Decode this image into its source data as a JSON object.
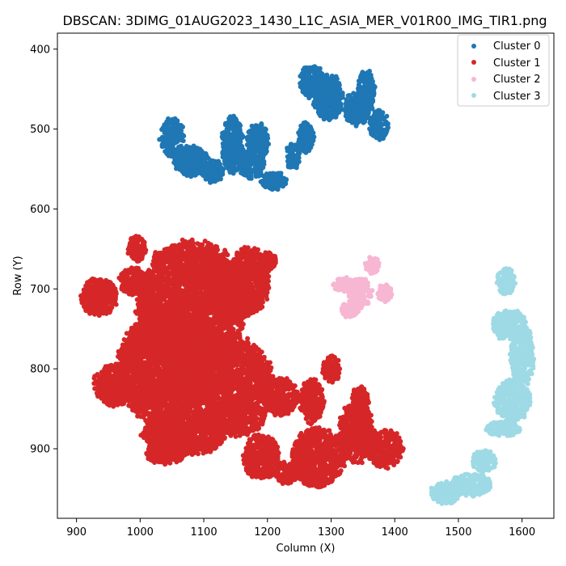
{
  "chart_data": {
    "type": "scatter",
    "title": "DBSCAN: 3DIMG_01AUG2023_1430_L1C_ASIA_MER_V01R00_IMG_TIR1.png",
    "xlabel": "Column (X)",
    "ylabel": "Row (Y)",
    "xlim": [
      870,
      1650
    ],
    "ylim": [
      380,
      987
    ],
    "y_inverted": true,
    "xticks": [
      900,
      1000,
      1100,
      1200,
      1300,
      1400,
      1500,
      1600
    ],
    "yticks": [
      400,
      500,
      600,
      700,
      800,
      900
    ],
    "grid": false,
    "legend_position": "top-right",
    "series": [
      {
        "name": "Cluster 0",
        "color": "#1f77b4",
        "blobs": [
          {
            "cx": 1050,
            "cy": 510,
            "rx": 20,
            "ry": 26
          },
          {
            "cx": 1080,
            "cy": 540,
            "rx": 30,
            "ry": 20
          },
          {
            "cx": 1115,
            "cy": 553,
            "rx": 18,
            "ry": 15
          },
          {
            "cx": 1145,
            "cy": 520,
            "rx": 18,
            "ry": 38
          },
          {
            "cx": 1175,
            "cy": 545,
            "rx": 22,
            "ry": 18
          },
          {
            "cx": 1185,
            "cy": 515,
            "rx": 18,
            "ry": 25
          },
          {
            "cx": 1210,
            "cy": 565,
            "rx": 22,
            "ry": 12
          },
          {
            "cx": 1240,
            "cy": 535,
            "rx": 12,
            "ry": 18
          },
          {
            "cx": 1260,
            "cy": 510,
            "rx": 14,
            "ry": 20
          },
          {
            "cx": 1295,
            "cy": 460,
            "rx": 25,
            "ry": 32
          },
          {
            "cx": 1270,
            "cy": 440,
            "rx": 20,
            "ry": 22
          },
          {
            "cx": 1340,
            "cy": 475,
            "rx": 22,
            "ry": 22
          },
          {
            "cx": 1355,
            "cy": 455,
            "rx": 15,
            "ry": 30
          },
          {
            "cx": 1375,
            "cy": 495,
            "rx": 16,
            "ry": 20
          }
        ]
      },
      {
        "name": "Cluster 1",
        "color": "#d62728",
        "blobs": [
          {
            "cx": 935,
            "cy": 710,
            "rx": 30,
            "ry": 25
          },
          {
            "cx": 990,
            "cy": 690,
            "rx": 25,
            "ry": 18
          },
          {
            "cx": 995,
            "cy": 650,
            "rx": 15,
            "ry": 18
          },
          {
            "cx": 1080,
            "cy": 720,
            "rx": 90,
            "ry": 85
          },
          {
            "cx": 1170,
            "cy": 690,
            "rx": 35,
            "ry": 45
          },
          {
            "cx": 1200,
            "cy": 665,
            "rx": 15,
            "ry": 12
          },
          {
            "cx": 960,
            "cy": 820,
            "rx": 35,
            "ry": 28
          },
          {
            "cx": 1030,
            "cy": 800,
            "rx": 70,
            "ry": 70
          },
          {
            "cx": 1130,
            "cy": 810,
            "rx": 80,
            "ry": 55
          },
          {
            "cx": 1150,
            "cy": 860,
            "rx": 50,
            "ry": 25
          },
          {
            "cx": 1070,
            "cy": 880,
            "rx": 70,
            "ry": 30
          },
          {
            "cx": 1040,
            "cy": 905,
            "rx": 35,
            "ry": 15
          },
          {
            "cx": 1220,
            "cy": 835,
            "rx": 30,
            "ry": 25
          },
          {
            "cx": 1190,
            "cy": 910,
            "rx": 30,
            "ry": 30
          },
          {
            "cx": 1270,
            "cy": 840,
            "rx": 20,
            "ry": 30
          },
          {
            "cx": 1300,
            "cy": 800,
            "rx": 15,
            "ry": 18
          },
          {
            "cx": 1280,
            "cy": 910,
            "rx": 45,
            "ry": 40
          },
          {
            "cx": 1340,
            "cy": 880,
            "rx": 30,
            "ry": 40
          },
          {
            "cx": 1345,
            "cy": 840,
            "rx": 15,
            "ry": 20
          },
          {
            "cx": 1385,
            "cy": 900,
            "rx": 30,
            "ry": 25
          },
          {
            "cx": 1230,
            "cy": 930,
            "rx": 20,
            "ry": 15
          }
        ]
      },
      {
        "name": "Cluster 2",
        "color": "#f7b6d2",
        "blobs": [
          {
            "cx": 1320,
            "cy": 695,
            "rx": 18,
            "ry": 10
          },
          {
            "cx": 1345,
            "cy": 705,
            "rx": 20,
            "ry": 20
          },
          {
            "cx": 1365,
            "cy": 670,
            "rx": 12,
            "ry": 12
          },
          {
            "cx": 1330,
            "cy": 725,
            "rx": 15,
            "ry": 12
          },
          {
            "cx": 1385,
            "cy": 705,
            "rx": 12,
            "ry": 12
          }
        ]
      },
      {
        "name": "Cluster 3",
        "color": "#9edae5",
        "blobs": [
          {
            "cx": 1575,
            "cy": 690,
            "rx": 15,
            "ry": 18
          },
          {
            "cx": 1580,
            "cy": 745,
            "rx": 30,
            "ry": 20
          },
          {
            "cx": 1600,
            "cy": 785,
            "rx": 20,
            "ry": 40
          },
          {
            "cx": 1585,
            "cy": 840,
            "rx": 30,
            "ry": 28
          },
          {
            "cx": 1570,
            "cy": 875,
            "rx": 30,
            "ry": 10
          },
          {
            "cx": 1540,
            "cy": 915,
            "rx": 20,
            "ry": 15
          },
          {
            "cx": 1520,
            "cy": 945,
            "rx": 35,
            "ry": 15
          },
          {
            "cx": 1480,
            "cy": 955,
            "rx": 25,
            "ry": 15
          }
        ]
      }
    ]
  }
}
